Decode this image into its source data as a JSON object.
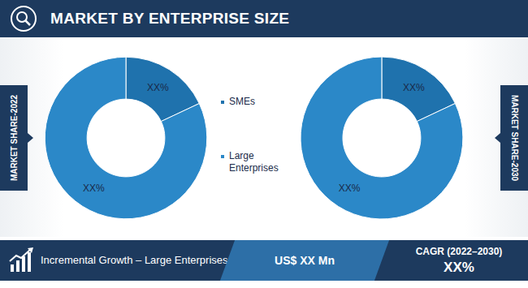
{
  "title": "MARKET BY ENTERPRISE SIZE",
  "chart_data": [
    {
      "type": "pie",
      "title": "MARKET SHARE-2022",
      "categories": [
        "SMEs",
        "Large Enterprises"
      ],
      "values": [
        18,
        82
      ],
      "value_labels": [
        "XX%",
        "XX%"
      ],
      "colors": [
        "#1f72ad",
        "#2b88c8"
      ],
      "data_labels": true
    },
    {
      "type": "pie",
      "title": "MARKET SHARE-2030",
      "categories": [
        "SMEs",
        "Large Enterprises"
      ],
      "values": [
        18,
        82
      ],
      "value_labels": [
        "XX%",
        "XX%"
      ],
      "colors": [
        "#1f72ad",
        "#2b88c8"
      ],
      "data_labels": true
    }
  ],
  "footer": {
    "growth_label": "Incremental Growth – Large Enterprises",
    "growth_value": "US$ XX Mn",
    "cagr_label": "CAGR (2022–2030)",
    "cagr_value": "XX%"
  }
}
